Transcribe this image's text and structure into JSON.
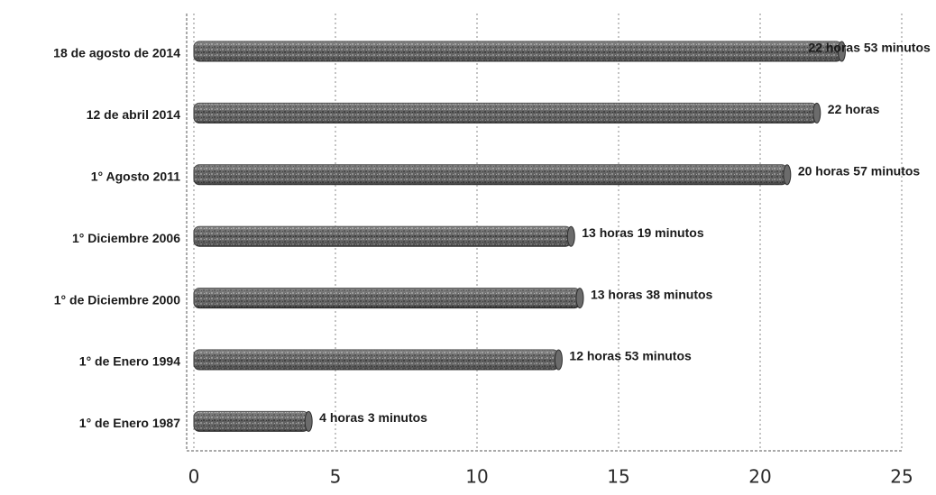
{
  "chart_data": {
    "type": "bar",
    "orientation": "horizontal",
    "categories": [
      "18 de agosto de 2014",
      "12 de abril 2014",
      "1° Agosto 2011",
      "1° Diciembre 2006",
      "1° de Diciembre 2000",
      "1° de Enero 1994",
      "1° de Enero 1987"
    ],
    "values": [
      22.88,
      22.0,
      20.95,
      13.32,
      13.63,
      12.88,
      4.05
    ],
    "data_labels": [
      "22 horas 53 minutos",
      "22 horas",
      "20 horas 57 minutos",
      "13 horas 19 minutos",
      "13 horas 38 minutos",
      "12 horas 53 minutos",
      "4 horas 3 minutos"
    ],
    "x_ticks": [
      "0",
      "5",
      "10",
      "15",
      "20",
      "25"
    ],
    "xlim": [
      0,
      25
    ],
    "grid": true,
    "bar_color": "#555555",
    "title": "",
    "xlabel": "",
    "ylabel": ""
  }
}
